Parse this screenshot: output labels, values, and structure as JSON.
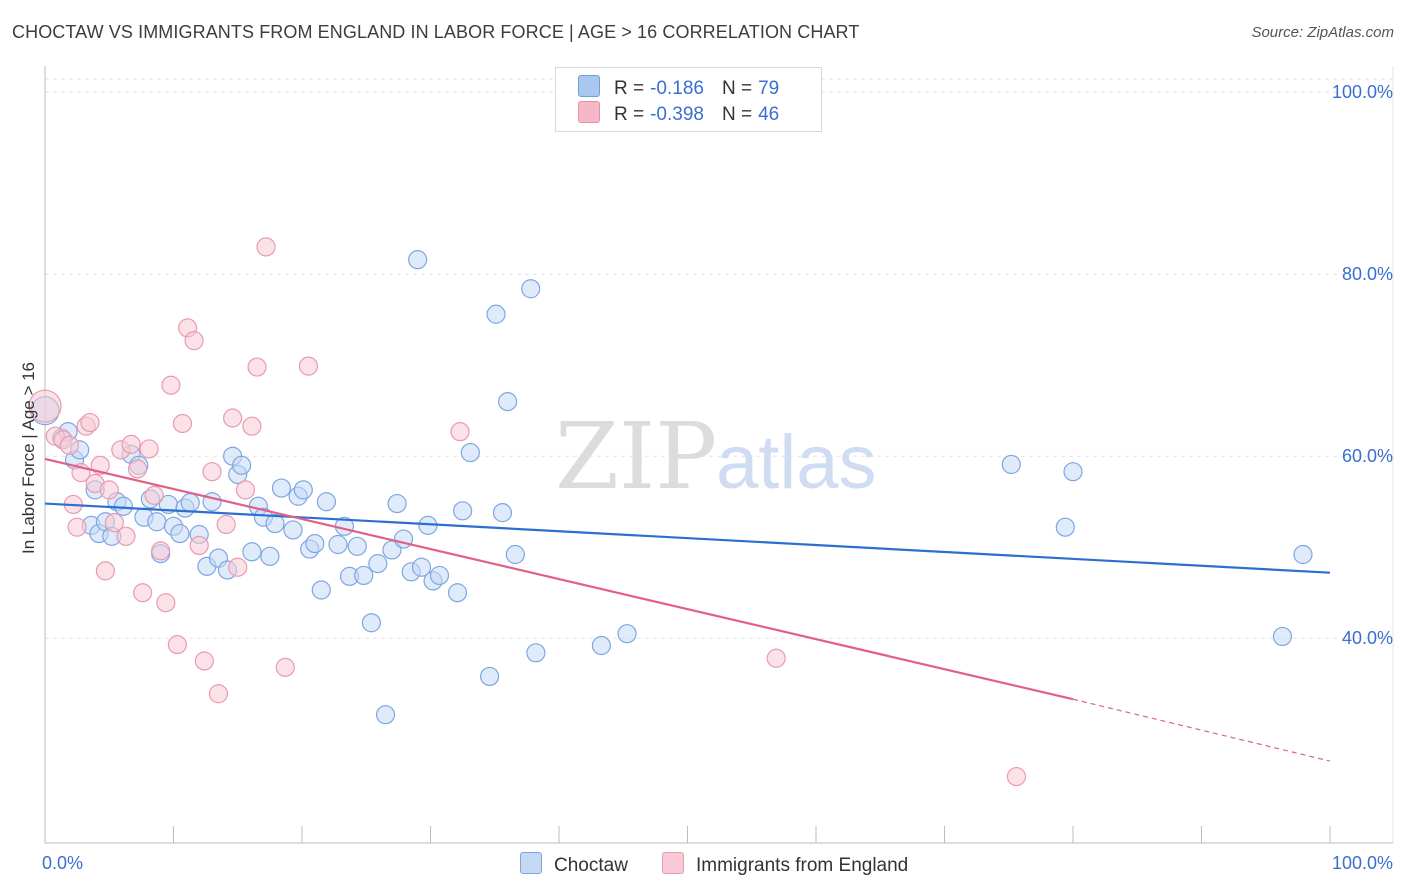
{
  "title": "CHOCTAW VS IMMIGRANTS FROM ENGLAND IN LABOR FORCE | AGE > 16 CORRELATION CHART",
  "source": "Source: ZipAtlas.com",
  "watermark": {
    "zip": "ZIP",
    "atlas": "atlas"
  },
  "legend_top": [
    {
      "r_label": "R =",
      "r_value": "-0.186",
      "n_label": "N =",
      "n_value": "79",
      "color": "#a8c8f0",
      "border": "#6f9fdd"
    },
    {
      "r_label": "R =",
      "r_value": "-0.398",
      "n_label": "N =",
      "n_value": "46",
      "color": "#f5b8c8",
      "border": "#e890aa"
    }
  ],
  "legend_bottom": [
    {
      "label": "Choctaw",
      "color": "#c5d9f5",
      "border": "#7ea7e0"
    },
    {
      "label": "Immigrants from England",
      "color": "#f8cad6",
      "border": "#e99ab0"
    }
  ],
  "chart_data": {
    "type": "scatter",
    "title": "CHOCTAW VS IMMIGRANTS FROM ENGLAND IN LABOR FORCE | AGE > 16 CORRELATION CHART",
    "xlabel": "",
    "ylabel": "In Labor Force | Age > 16",
    "xlim": [
      0,
      100
    ],
    "ylim": [
      17.5,
      102
    ],
    "x_tick_labels": [
      "0.0%",
      "100.0%"
    ],
    "y_ticks": [
      40,
      60,
      80,
      100
    ],
    "y_tick_labels": [
      "40.0%",
      "60.0%",
      "80.0%",
      "100.0%"
    ],
    "grid": true,
    "legend_position": "top-center",
    "series": [
      {
        "name": "Choctaw",
        "color": "#7ea7e0",
        "fill": "#c5d9f5",
        "trend": {
          "x0": 0,
          "y0": 54.8,
          "x1": 100,
          "y1": 47.2,
          "color": "#2d6fd0"
        },
        "points": [
          [
            0.0,
            65.0
          ],
          [
            1.3,
            62.0
          ],
          [
            1.8,
            62.7
          ],
          [
            2.3,
            59.6
          ],
          [
            2.7,
            60.7
          ],
          [
            3.6,
            52.4
          ],
          [
            3.9,
            56.3
          ],
          [
            4.2,
            51.5
          ],
          [
            4.7,
            52.8
          ],
          [
            5.2,
            51.2
          ],
          [
            5.6,
            55.0
          ],
          [
            6.1,
            54.5
          ],
          [
            6.7,
            60.2
          ],
          [
            7.3,
            59.0
          ],
          [
            7.7,
            53.3
          ],
          [
            8.2,
            55.3
          ],
          [
            8.7,
            52.8
          ],
          [
            9.0,
            49.3
          ],
          [
            9.6,
            54.7
          ],
          [
            10.0,
            52.3
          ],
          [
            10.5,
            51.5
          ],
          [
            10.9,
            54.3
          ],
          [
            11.3,
            54.9
          ],
          [
            12.0,
            51.4
          ],
          [
            12.6,
            47.9
          ],
          [
            13.0,
            55.0
          ],
          [
            13.5,
            48.8
          ],
          [
            14.2,
            47.5
          ],
          [
            14.6,
            60.0
          ],
          [
            15.0,
            58.0
          ],
          [
            15.3,
            59.0
          ],
          [
            16.1,
            49.5
          ],
          [
            16.6,
            54.5
          ],
          [
            17.0,
            53.3
          ],
          [
            17.5,
            49.0
          ],
          [
            17.9,
            52.6
          ],
          [
            18.4,
            56.5
          ],
          [
            19.3,
            51.9
          ],
          [
            19.7,
            55.6
          ],
          [
            20.1,
            56.3
          ],
          [
            20.6,
            49.8
          ],
          [
            21.0,
            50.4
          ],
          [
            21.5,
            45.3
          ],
          [
            21.9,
            55.0
          ],
          [
            22.8,
            50.3
          ],
          [
            23.3,
            52.3
          ],
          [
            23.7,
            46.8
          ],
          [
            24.3,
            50.1
          ],
          [
            24.8,
            46.9
          ],
          [
            25.4,
            41.7
          ],
          [
            25.9,
            48.2
          ],
          [
            26.5,
            31.6
          ],
          [
            27.0,
            49.7
          ],
          [
            27.4,
            54.8
          ],
          [
            27.9,
            50.9
          ],
          [
            28.5,
            47.3
          ],
          [
            29.0,
            81.6
          ],
          [
            29.3,
            47.8
          ],
          [
            29.8,
            52.4
          ],
          [
            30.2,
            46.3
          ],
          [
            30.7,
            46.9
          ],
          [
            32.1,
            45.0
          ],
          [
            32.5,
            54.0
          ],
          [
            33.1,
            60.4
          ],
          [
            34.6,
            35.8
          ],
          [
            35.1,
            75.6
          ],
          [
            35.6,
            53.8
          ],
          [
            36.0,
            66.0
          ],
          [
            36.6,
            49.2
          ],
          [
            37.8,
            78.4
          ],
          [
            38.2,
            38.4
          ],
          [
            43.3,
            39.2
          ],
          [
            45.3,
            40.5
          ],
          [
            75.2,
            59.1
          ],
          [
            79.4,
            52.2
          ],
          [
            80.0,
            58.3
          ],
          [
            96.3,
            40.2
          ],
          [
            97.9,
            49.2
          ]
        ]
      },
      {
        "name": "Immigrants from England",
        "color": "#e99ab0",
        "fill": "#f8cad6",
        "trend": {
          "x0": 0,
          "y0": 59.7,
          "x1": 80,
          "y1": 33.3,
          "x_dash_end": 100,
          "y_dash_end": 26.5,
          "color": "#e0608a"
        },
        "points": [
          [
            0.0,
            65.5
          ],
          [
            0.8,
            62.2
          ],
          [
            1.4,
            61.8
          ],
          [
            1.9,
            61.2
          ],
          [
            2.2,
            54.7
          ],
          [
            2.5,
            52.2
          ],
          [
            2.8,
            58.2
          ],
          [
            3.2,
            63.3
          ],
          [
            3.5,
            63.7
          ],
          [
            3.9,
            57.0
          ],
          [
            4.3,
            59.0
          ],
          [
            4.7,
            47.4
          ],
          [
            5.0,
            56.3
          ],
          [
            5.4,
            52.7
          ],
          [
            5.9,
            60.7
          ],
          [
            6.3,
            51.2
          ],
          [
            6.7,
            61.3
          ],
          [
            7.2,
            58.6
          ],
          [
            7.6,
            45.0
          ],
          [
            8.1,
            60.8
          ],
          [
            8.5,
            55.7
          ],
          [
            9.0,
            49.6
          ],
          [
            9.4,
            43.9
          ],
          [
            9.8,
            67.8
          ],
          [
            10.3,
            39.3
          ],
          [
            10.7,
            63.6
          ],
          [
            11.1,
            74.1
          ],
          [
            11.6,
            72.7
          ],
          [
            12.0,
            50.2
          ],
          [
            12.4,
            37.5
          ],
          [
            13.0,
            58.3
          ],
          [
            13.5,
            33.9
          ],
          [
            14.1,
            52.5
          ],
          [
            14.6,
            64.2
          ],
          [
            15.0,
            47.8
          ],
          [
            15.6,
            56.3
          ],
          [
            16.1,
            63.3
          ],
          [
            16.5,
            69.8
          ],
          [
            17.2,
            83.0
          ],
          [
            18.7,
            36.8
          ],
          [
            20.5,
            69.9
          ],
          [
            32.3,
            62.7
          ],
          [
            56.9,
            37.8
          ],
          [
            75.6,
            24.8
          ]
        ]
      }
    ]
  }
}
